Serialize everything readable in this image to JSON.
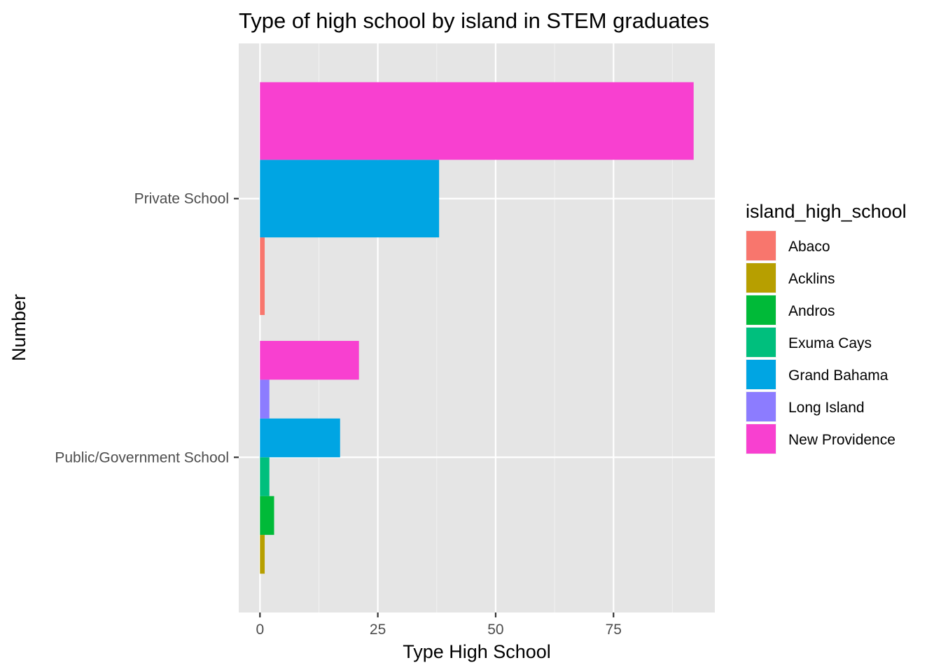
{
  "chart_data": {
    "type": "bar",
    "orientation": "horizontal",
    "title": "Type of high school by island in STEM graduates",
    "xlabel": "Type High School",
    "ylabel": "Number",
    "xlim": [
      -4.5,
      96.5
    ],
    "x_ticks": [
      0,
      25,
      50,
      75
    ],
    "categories": [
      "Public/Government School",
      "Private School"
    ],
    "legend_title": "island_high_school",
    "legend_position": "right",
    "grid": true,
    "series": [
      {
        "name": "Abaco",
        "color": "#F8766D",
        "values": [
          null,
          1
        ]
      },
      {
        "name": "Acklins",
        "color": "#B79F00",
        "values": [
          1,
          null
        ]
      },
      {
        "name": "Andros",
        "color": "#00BA38",
        "values": [
          3,
          null
        ]
      },
      {
        "name": "Exuma Cays",
        "color": "#00BF7D",
        "values": [
          2,
          null
        ]
      },
      {
        "name": "Grand Bahama",
        "color": "#00A5E3",
        "values": [
          17,
          38
        ]
      },
      {
        "name": "Long Island",
        "color": "#8C7CFF",
        "values": [
          2,
          null
        ]
      },
      {
        "name": "New Providence",
        "color": "#F840D0",
        "values": [
          21,
          92
        ]
      }
    ]
  }
}
